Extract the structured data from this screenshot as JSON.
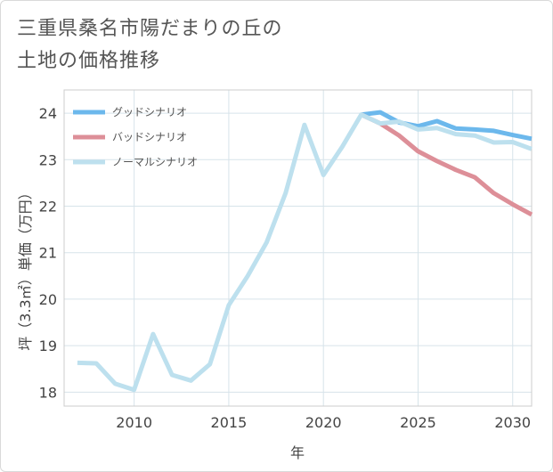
{
  "title": "三重県桑名市陽だまりの丘の\n土地の価格推移",
  "chart_data": {
    "type": "line",
    "title": "三重県桑名市陽だまりの丘の土地の価格推移",
    "xlabel": "年",
    "ylabel": "坪（3.3㎡）単価（万円）",
    "xlim": [
      2006.3,
      2031
    ],
    "ylim": [
      17.7,
      24.5
    ],
    "xticks": [
      2010,
      2015,
      2020,
      2025,
      2030
    ],
    "yticks": [
      18,
      19,
      20,
      21,
      22,
      23,
      24
    ],
    "grid": true,
    "legend_position": "top-left",
    "series": [
      {
        "name": "グッドシナリオ",
        "color": "#6cb8ec",
        "x": [
          2022,
          2023,
          2024,
          2025,
          2026,
          2027,
          2028,
          2029,
          2030,
          2031
        ],
        "y": [
          23.97,
          24.02,
          23.8,
          23.72,
          23.83,
          23.67,
          23.65,
          23.62,
          23.53,
          23.45
        ]
      },
      {
        "name": "バッドシナリオ",
        "color": "#dd8f98",
        "x": [
          2022,
          2023,
          2024,
          2025,
          2026,
          2027,
          2028,
          2029,
          2030,
          2031
        ],
        "y": [
          23.97,
          23.78,
          23.52,
          23.18,
          22.97,
          22.78,
          22.62,
          22.28,
          22.04,
          21.82
        ]
      },
      {
        "name": "ノーマルシナリオ",
        "color": "#bde0ee",
        "x": [
          2007,
          2008,
          2009,
          2010,
          2011,
          2012,
          2013,
          2014,
          2015,
          2016,
          2017,
          2018,
          2019,
          2020,
          2021,
          2022,
          2023,
          2024,
          2025,
          2026,
          2027,
          2028,
          2029,
          2030,
          2031
        ],
        "y": [
          18.63,
          18.62,
          18.18,
          18.05,
          19.25,
          18.37,
          18.25,
          18.6,
          19.87,
          20.5,
          21.22,
          22.28,
          23.75,
          22.67,
          23.28,
          23.97,
          23.78,
          23.82,
          23.65,
          23.68,
          23.55,
          23.52,
          23.37,
          23.38,
          23.23
        ]
      }
    ]
  }
}
